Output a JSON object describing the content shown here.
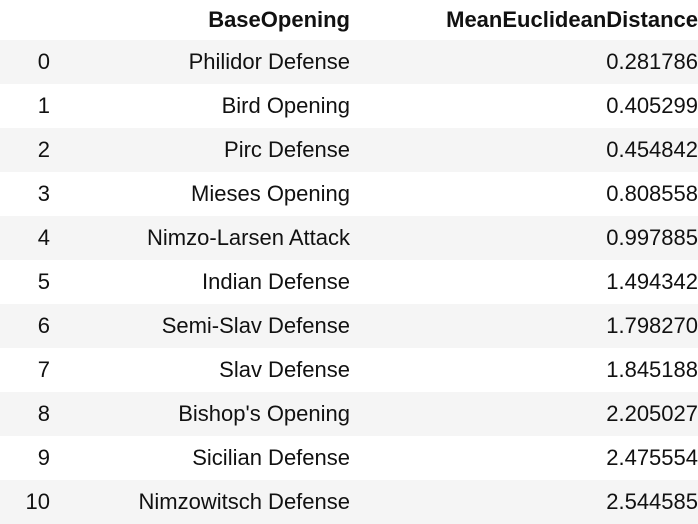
{
  "table": {
    "columns": {
      "index": "",
      "opening": "BaseOpening",
      "distance": "MeanEuclideanDistance"
    },
    "rows": [
      {
        "index": "0",
        "opening": "Philidor Defense",
        "distance": "0.281786"
      },
      {
        "index": "1",
        "opening": "Bird Opening",
        "distance": "0.405299"
      },
      {
        "index": "2",
        "opening": "Pirc Defense",
        "distance": "0.454842"
      },
      {
        "index": "3",
        "opening": "Mieses Opening",
        "distance": "0.808558"
      },
      {
        "index": "4",
        "opening": "Nimzo-Larsen Attack",
        "distance": "0.997885"
      },
      {
        "index": "5",
        "opening": "Indian Defense",
        "distance": "1.494342"
      },
      {
        "index": "6",
        "opening": "Semi-Slav Defense",
        "distance": "1.798270"
      },
      {
        "index": "7",
        "opening": "Slav Defense",
        "distance": "1.845188"
      },
      {
        "index": "8",
        "opening": "Bishop's Opening",
        "distance": "2.205027"
      },
      {
        "index": "9",
        "opening": "Sicilian Defense",
        "distance": "2.475554"
      },
      {
        "index": "10",
        "opening": "Nimzowitsch Defense",
        "distance": "2.544585"
      }
    ]
  }
}
